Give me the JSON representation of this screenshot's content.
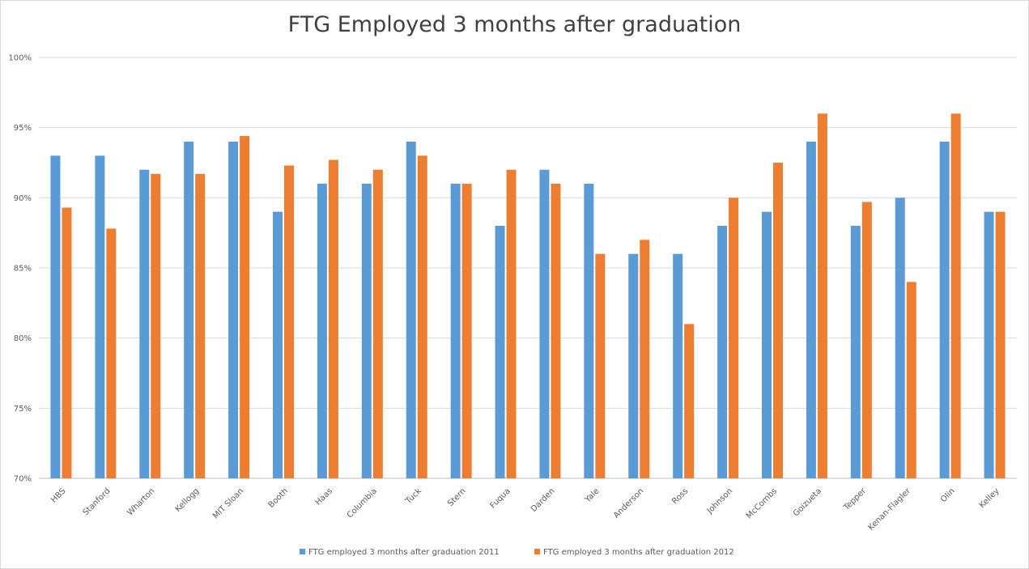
{
  "chart_data": {
    "type": "bar",
    "title": "FTG Employed 3 months after graduation",
    "xlabel": "",
    "ylabel": "",
    "ylim": [
      0.7,
      1.0
    ],
    "yticks": [
      "70%",
      "75%",
      "80%",
      "85%",
      "90%",
      "95%",
      "100%"
    ],
    "grid": true,
    "legend_position": "bottom",
    "categories": [
      "HBS",
      "Stanford",
      "Wharton",
      "Kellogg",
      "MIT Sloan",
      "Booth",
      "Haas",
      "Columbia",
      "Tuck",
      "Stern",
      "Fuqua",
      "Darden",
      "Yale",
      "Anderson",
      "Ross",
      "Johnson",
      "McCombs",
      "Goizueta",
      "Tepper",
      "Kenan-Flagler",
      "Olin",
      "Kelley"
    ],
    "series": [
      {
        "name": "FTG employed 3 months after graduation 2011",
        "color": "#5b9bd5",
        "values": [
          0.93,
          0.93,
          0.92,
          0.94,
          0.94,
          0.89,
          0.91,
          0.91,
          0.94,
          0.91,
          0.88,
          0.92,
          0.91,
          0.86,
          0.86,
          0.88,
          0.89,
          0.94,
          0.88,
          0.9,
          0.94,
          0.89
        ]
      },
      {
        "name": "FTG employed 3 months after graduation 2012",
        "color": "#ed7d31",
        "values": [
          0.893,
          0.878,
          0.917,
          0.917,
          0.944,
          0.923,
          0.927,
          0.92,
          0.93,
          0.91,
          0.92,
          0.91,
          0.86,
          0.87,
          0.81,
          0.9,
          0.925,
          0.96,
          0.897,
          0.84,
          0.96,
          0.89
        ]
      }
    ]
  }
}
